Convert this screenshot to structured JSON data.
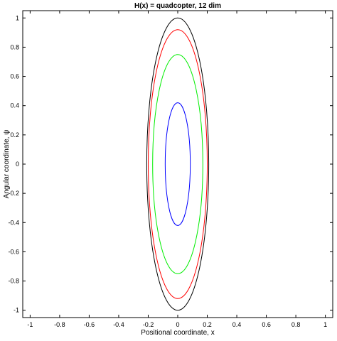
{
  "chart_data": {
    "type": "line",
    "title": "H(x) = quadcopter, 12 dim",
    "xlabel": "Positional coordinate, x",
    "ylabel": "Angular coordinate, ψ",
    "xlim": [
      -1.05,
      1.05
    ],
    "ylim": [
      -1.05,
      1.05
    ],
    "xticks": [
      -1,
      -0.8,
      -0.6,
      -0.4,
      -0.2,
      0,
      0.2,
      0.4,
      0.6,
      0.8,
      1
    ],
    "xtick_labels": [
      "-1",
      "-0.8",
      "-0.6",
      "-0.4",
      "-0.2",
      "0",
      "0.2",
      "0.4",
      "0.6",
      "0.8",
      "1"
    ],
    "yticks": [
      1,
      0.8,
      0.6,
      0.4,
      0.2,
      0,
      -0.2,
      -0.4,
      -0.6,
      -0.8,
      -1
    ],
    "ytick_labels": [
      "1",
      "0.8",
      "0.6",
      "0.4",
      "0.2",
      "0",
      "-0.2",
      "-0.4",
      "-0.6",
      "-0.8",
      "-1"
    ],
    "grid": false,
    "legend": "none",
    "series": [
      {
        "color": "#000000",
        "center": [
          0,
          0
        ],
        "semi_axis_x": 0.21,
        "semi_axis_y": 1.0
      },
      {
        "color": "#ff0000",
        "center": [
          0,
          0
        ],
        "semi_axis_x": 0.2,
        "semi_axis_y": 0.92
      },
      {
        "color": "#00ee00",
        "center": [
          0,
          0
        ],
        "semi_axis_x": 0.17,
        "semi_axis_y": 0.75
      },
      {
        "color": "#0000ff",
        "center": [
          0,
          0
        ],
        "semi_axis_x": 0.085,
        "semi_axis_y": 0.42
      }
    ]
  }
}
